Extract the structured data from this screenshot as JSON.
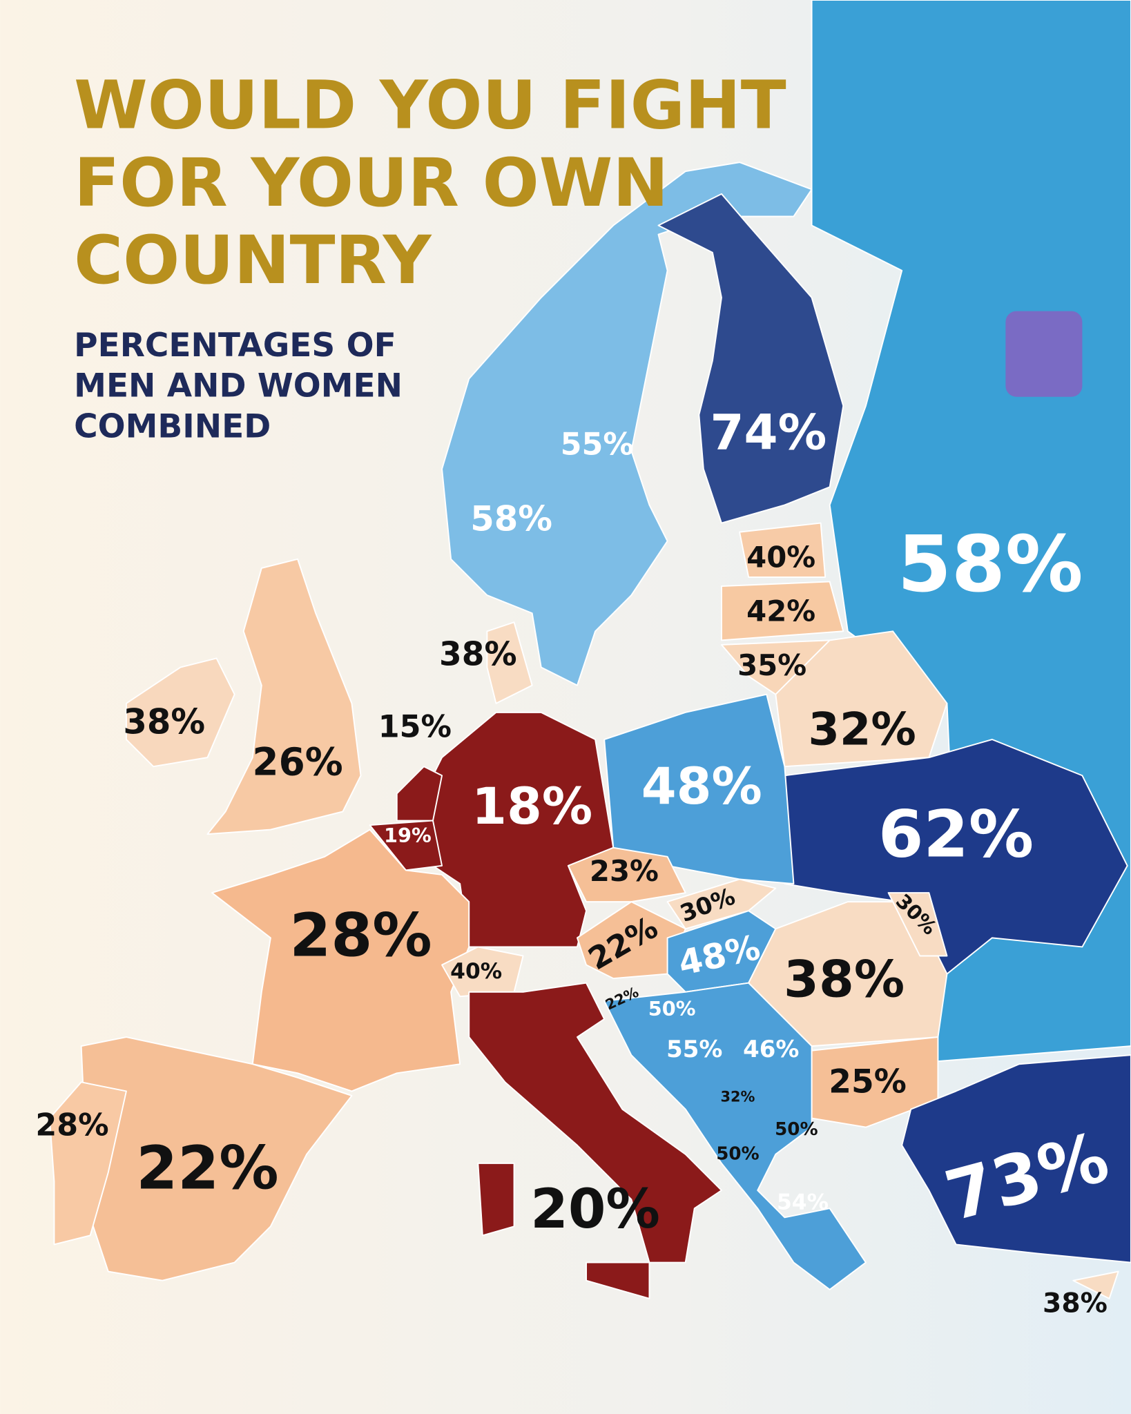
{
  "header": {
    "title_lines": [
      "WOULD YOU FIGHT",
      "FOR YOUR OWN",
      "COUNTRY"
    ],
    "subtitle_lines": [
      "PERCENTAGES OF",
      "MEN AND WOMEN",
      "COMBINED"
    ]
  },
  "labels": [
    "74%",
    "55%",
    "58%",
    "58%",
    "40%",
    "42%",
    "35%",
    "32%",
    "38%",
    "38%",
    "26%",
    "15%",
    "19%",
    "18%",
    "48%",
    "62%",
    "28%",
    "23%",
    "30%",
    "22%",
    "48%",
    "40%",
    "30%",
    "38%",
    "22%",
    "50%",
    "55%",
    "46%",
    "25%",
    "32%",
    "50%",
    "50%",
    "54%",
    "73%",
    "38%",
    "28%",
    "22%",
    "20%"
  ]
}
